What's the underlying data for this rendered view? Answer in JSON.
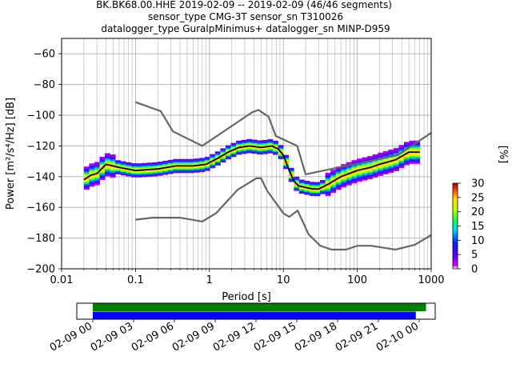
{
  "title_lines": [
    "BK.BK68.00.HHE   2019-02-09 -- 2019-02-09  (46/46 segments)",
    "sensor_type CMG-3T sensor_sn T310026",
    "datalogger_type GuralpMinimus+ datalogger_sn MINP-D959"
  ],
  "chart_data": [
    {
      "type": "heatmap",
      "subtype": "probabilistic-power-spectral-density",
      "xlabel": "Period [s]",
      "ylabel": "Power [m²/s⁴/Hz] [dB]",
      "xscale": "log",
      "xlim": [
        0.01,
        1000
      ],
      "ylim": [
        -200,
        -50
      ],
      "x_ticks": [
        0.01,
        0.1,
        1,
        10,
        100,
        1000
      ],
      "x_tick_labels": [
        "0.01",
        "0.1",
        "1",
        "10",
        "100",
        "1000"
      ],
      "y_ticks": [
        -60,
        -80,
        -100,
        -120,
        -140,
        -160,
        -180,
        -200
      ],
      "y_tick_labels": [
        "−60",
        "−80",
        "−100",
        "−120",
        "−140",
        "−160",
        "−180",
        "−200"
      ],
      "grid": true,
      "noise_models": [
        {
          "name": "NHNM",
          "color": "#666666",
          "period": [
            0.1,
            0.22,
            0.32,
            0.8,
            3.8,
            4.6,
            6.3,
            7.9,
            15.4,
            20,
            354.8,
            1000
          ],
          "power": [
            -91.5,
            -97.4,
            -110.5,
            -120,
            -98,
            -96.5,
            -101,
            -113.5,
            -120,
            -138.5,
            -126,
            -111.5
          ]
        },
        {
          "name": "NLNM",
          "color": "#666666",
          "period": [
            0.1,
            0.17,
            0.4,
            0.8,
            1.24,
            2.4,
            4.3,
            5,
            6,
            10,
            12,
            15.6,
            21.9,
            31.6,
            45,
            70,
            101,
            154,
            328,
            600,
            1000
          ],
          "power": [
            -168,
            -166.7,
            -166.7,
            -169.2,
            -163.7,
            -148.6,
            -141.1,
            -141.1,
            -149,
            -163.8,
            -166.2,
            -162.1,
            -177.5,
            -185,
            -187.5,
            -187.5,
            -185,
            -185,
            -187.5,
            -184.4,
            -178
          ]
        }
      ],
      "mean_curve": {
        "color": "#000000",
        "period": [
          0.02,
          0.025,
          0.03,
          0.04,
          0.06,
          0.1,
          0.2,
          0.35,
          0.6,
          0.9,
          1.3,
          1.8,
          2.5,
          3.5,
          5,
          7,
          8.5,
          10,
          12,
          14,
          16,
          20,
          25,
          30,
          40,
          60,
          100,
          150,
          200,
          330,
          500,
          700
        ],
        "power": [
          -142,
          -139,
          -138,
          -132,
          -134,
          -136,
          -135,
          -133,
          -133,
          -132,
          -128,
          -124,
          -121,
          -120,
          -121,
          -120,
          -122,
          -126,
          -136,
          -143,
          -146,
          -147,
          -148,
          -148,
          -145,
          -140,
          -136,
          -134,
          -132,
          -129,
          -124,
          -124
        ]
      },
      "colorbar": {
        "label": "[%]",
        "range": [
          0,
          30
        ],
        "ticks": [
          0,
          5,
          10,
          15,
          20,
          25,
          30
        ],
        "colormap": "pqlx"
      }
    },
    {
      "type": "timeline",
      "x_tick_labels": [
        "02-09 00",
        "02-09 03",
        "02-09 06",
        "02-09 09",
        "02-09 12",
        "02-09 15",
        "02-09 18",
        "02-09 21",
        "02-10 00"
      ],
      "bars": [
        {
          "color": "#008000",
          "start": "02-09 00:00",
          "end": "02-10 00:30"
        },
        {
          "color": "#0000ff",
          "start": "02-09 00:00",
          "end": "02-09 23:45"
        }
      ]
    }
  ]
}
